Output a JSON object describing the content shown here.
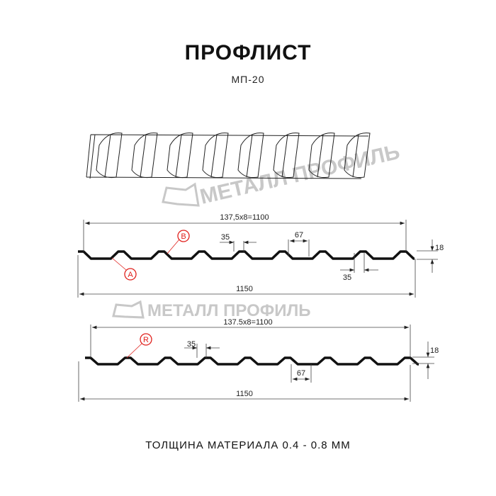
{
  "title": "ПРОФЛИСТ",
  "subtitle": "МП-20",
  "footer": "ТОЛЩИНА МАТЕРИАЛА 0.4 - 0.8 ММ",
  "watermark": "МЕТАЛЛ ПРОФИЛЬ",
  "profile_a": {
    "pitch_label": "137,5x8=1100",
    "width_label": "1150",
    "crest_label": "35",
    "valley_label": "67",
    "bottom_crest_label": "35",
    "height_label": "18",
    "marker_a": "A",
    "marker_b": "B"
  },
  "profile_r": {
    "pitch_label": "137.5x8=1100",
    "width_label": "1150",
    "crest_label": "35",
    "valley_label": "67",
    "height_label": "18",
    "marker_r": "R"
  },
  "colors": {
    "line": "#111111",
    "marker": "#e0201c",
    "watermark": "#c8c8c8"
  }
}
